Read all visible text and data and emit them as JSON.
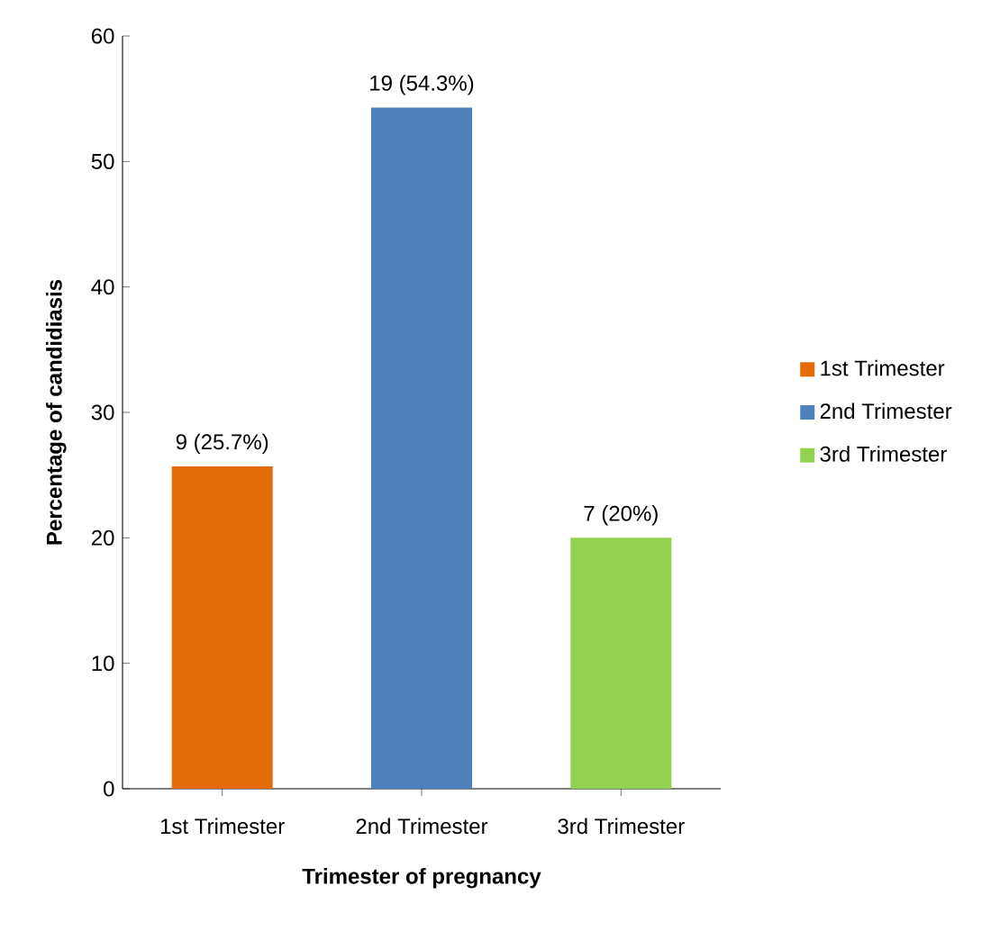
{
  "chart_data": {
    "type": "bar",
    "xlabel": "Trimester of pregnancy",
    "ylabel": "Percentage of candidiasis",
    "categories": [
      "1st Trimester",
      "2nd Trimester",
      "3rd Trimester"
    ],
    "series": [
      {
        "name": "1st Trimester",
        "color": "#e36c09",
        "values": [
          25.7,
          null,
          null
        ],
        "value_labels": [
          "9 (25.7%)",
          null,
          null
        ]
      },
      {
        "name": "2nd Trimester",
        "color": "#4f81bd",
        "values": [
          null,
          54.3,
          null
        ],
        "value_labels": [
          null,
          "19 (54.3%)",
          null
        ]
      },
      {
        "name": "3rd Trimester",
        "color": "#92d050",
        "values": [
          null,
          null,
          20
        ],
        "value_labels": [
          null,
          null,
          "7 (20%)"
        ]
      }
    ],
    "ylim": [
      0,
      60
    ],
    "yticks": [
      0,
      10,
      20,
      30,
      40,
      50,
      60
    ],
    "legend": "right"
  }
}
